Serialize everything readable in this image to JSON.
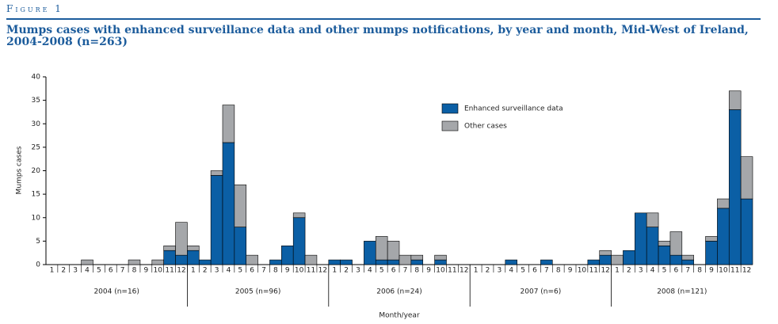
{
  "figure_label": "Figure 1",
  "chart_data": {
    "type": "stacked-bar",
    "title": "Mumps cases with enhanced surveillance data and other mumps notifications, by year and month, Mid-West of Ireland, 2004-2008 (n=263)",
    "y_label": "Mumps cases",
    "x_label": "Month/year",
    "categories": [
      "1",
      "2",
      "3",
      "4",
      "5",
      "6",
      "7",
      "8",
      "9",
      "10",
      "11",
      "12",
      "1",
      "2",
      "3",
      "4",
      "5",
      "6",
      "7",
      "8",
      "9",
      "10",
      "11",
      "12",
      "1",
      "2",
      "3",
      "4",
      "5",
      "6",
      "7",
      "8",
      "9",
      "10",
      "11",
      "12",
      "1",
      "2",
      "3",
      "4",
      "5",
      "6",
      "7",
      "8",
      "9",
      "10",
      "11",
      "12",
      "1",
      "2",
      "3",
      "4",
      "5",
      "6",
      "7",
      "8",
      "9",
      "10",
      "11",
      "12"
    ],
    "groups": [
      "2004 (n=16)",
      "2005 (n=96)",
      "2006 (n=24)",
      "2007 (n=6)",
      "2008 (n=121)"
    ],
    "series": [
      {
        "name": "Enhanced surveillance data",
        "color": "#0b5fa5",
        "values": [
          0,
          0,
          0,
          0,
          0,
          0,
          0,
          0,
          0,
          0,
          3,
          2,
          3,
          1,
          19,
          26,
          8,
          0,
          0,
          1,
          4,
          10,
          0,
          0,
          1,
          1,
          0,
          5,
          1,
          1,
          0,
          1,
          0,
          1,
          0,
          0,
          0,
          0,
          0,
          1,
          0,
          0,
          1,
          0,
          0,
          0,
          1,
          2,
          0,
          3,
          11,
          8,
          4,
          2,
          1,
          0,
          5,
          12,
          33,
          14
        ]
      },
      {
        "name": "Other cases",
        "color": "#a5a7aa",
        "values": [
          0,
          0,
          0,
          1,
          0,
          0,
          0,
          1,
          0,
          1,
          1,
          7,
          1,
          0,
          1,
          8,
          9,
          2,
          0,
          0,
          0,
          1,
          2,
          0,
          0,
          0,
          0,
          0,
          5,
          4,
          2,
          1,
          0,
          1,
          0,
          0,
          0,
          0,
          0,
          0,
          0,
          0,
          0,
          0,
          0,
          0,
          0,
          1,
          2,
          0,
          0,
          3,
          1,
          5,
          1,
          0,
          1,
          2,
          4,
          9
        ]
      }
    ],
    "ylim": [
      0,
      40
    ],
    "yticks": [
      0,
      5,
      10,
      15,
      20,
      25,
      30,
      35,
      40
    ],
    "legend": "upper-center"
  }
}
